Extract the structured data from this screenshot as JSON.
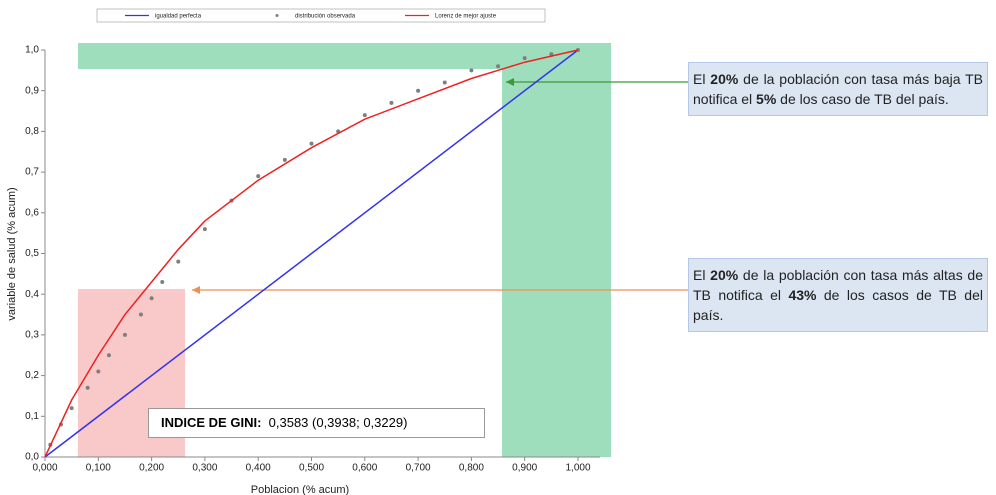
{
  "chart_data": {
    "type": "line",
    "legend": "top",
    "grid": false,
    "x_label": "Poblacion (% acum)",
    "y_label": "variable de salud (% acum)",
    "xlim": [
      0,
      1
    ],
    "ylim": [
      0,
      1
    ],
    "xticks": [
      {
        "value": 0,
        "label": "0,000"
      },
      {
        "value": 0.1,
        "label": "0,100"
      },
      {
        "value": 0.2,
        "label": "0,200"
      },
      {
        "value": 0.3,
        "label": "0,300"
      },
      {
        "value": 0.4,
        "label": "0,400"
      },
      {
        "value": 0.5,
        "label": "0,500"
      },
      {
        "value": 0.6,
        "label": "0,600"
      },
      {
        "value": 0.7,
        "label": "0,700"
      },
      {
        "value": 0.8,
        "label": "0,800"
      },
      {
        "value": 0.9,
        "label": "0,900"
      },
      {
        "value": 1,
        "label": "1,000"
      }
    ],
    "yticks": [
      {
        "value": 0,
        "label": "0,0"
      },
      {
        "value": 0.1,
        "label": "0,1"
      },
      {
        "value": 0.2,
        "label": "0,2"
      },
      {
        "value": 0.3,
        "label": "0,3"
      },
      {
        "value": 0.4,
        "label": "0,4"
      },
      {
        "value": 0.5,
        "label": "0,5"
      },
      {
        "value": 0.6,
        "label": "0,6"
      },
      {
        "value": 0.7,
        "label": "0,7"
      },
      {
        "value": 0.8,
        "label": "0,8"
      },
      {
        "value": 0.9,
        "label": "0,9"
      },
      {
        "value": 1,
        "label": "1,0"
      }
    ],
    "series": [
      {
        "name": "igualdad perfecta",
        "color": "#3333ee",
        "marker": "line",
        "x": [
          0,
          1
        ],
        "values": [
          0,
          1
        ]
      },
      {
        "name": "distribución observada",
        "color": "#7f7f7f",
        "marker": "dots",
        "x": [
          0.01,
          0.03,
          0.05,
          0.08,
          0.1,
          0.12,
          0.15,
          0.18,
          0.2,
          0.22,
          0.25,
          0.3,
          0.35,
          0.4,
          0.45,
          0.5,
          0.55,
          0.6,
          0.65,
          0.7,
          0.75,
          0.8,
          0.85,
          0.9,
          0.95,
          1
        ],
        "values": [
          0.03,
          0.08,
          0.12,
          0.17,
          0.21,
          0.25,
          0.3,
          0.35,
          0.39,
          0.43,
          0.48,
          0.56,
          0.63,
          0.69,
          0.73,
          0.77,
          0.8,
          0.84,
          0.87,
          0.9,
          0.92,
          0.95,
          0.96,
          0.98,
          0.99,
          1
        ]
      },
      {
        "name": "Lorenz de mejor ajuste",
        "color": "#ee2222",
        "marker": "line",
        "x": [
          0,
          0.05,
          0.1,
          0.15,
          0.2,
          0.25,
          0.3,
          0.4,
          0.5,
          0.6,
          0.7,
          0.8,
          0.9,
          1
        ],
        "values": [
          0,
          0.14,
          0.25,
          0.35,
          0.43,
          0.51,
          0.58,
          0.68,
          0.76,
          0.83,
          0.88,
          0.93,
          0.97,
          1
        ]
      }
    ],
    "annotations": [
      {
        "parts": [
          "El ",
          "20%",
          " de la población con tasa más baja  TB notifica el ",
          "5%",
          " de los caso de TB del  país."
        ]
      },
      {
        "parts": [
          "El ",
          "20%",
          " de la población con tasa más altas de TB notifica el  ",
          "43%",
          " de los casos de TB del  país."
        ]
      }
    ],
    "gini": {
      "label": "INDICE DE GINI:",
      "value": "0,3583 (0,3938;  0,3229)"
    }
  }
}
